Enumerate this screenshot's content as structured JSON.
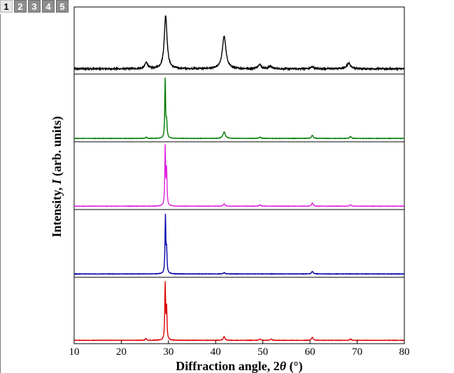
{
  "page_tabs": [
    {
      "label": "1",
      "active": true
    },
    {
      "label": "2",
      "active": false
    },
    {
      "label": "3",
      "active": false
    },
    {
      "label": "4",
      "active": false
    },
    {
      "label": "5",
      "active": false
    }
  ],
  "chart_data": {
    "type": "line",
    "xlabel_prefix": "Diffraction angle, 2",
    "xlabel_theta": "θ",
    "xlabel_suffix": " (°)",
    "ylabel_prefix": "Intensity, ",
    "ylabel_var": "I",
    "ylabel_suffix": " (arb. units)",
    "xlim": [
      10,
      80
    ],
    "xticks": [
      10,
      20,
      30,
      40,
      50,
      60,
      70,
      80
    ],
    "panels": [
      {
        "color": "#000000",
        "baseline": 0.05,
        "noise": 0.012,
        "peaks": [
          {
            "x": 25.3,
            "h": 0.1,
            "w": 0.35
          },
          {
            "x": 29.4,
            "h": 0.85,
            "w": 0.35
          },
          {
            "x": 41.8,
            "h": 0.52,
            "w": 0.45
          },
          {
            "x": 49.3,
            "h": 0.07,
            "w": 0.4
          },
          {
            "x": 51.6,
            "h": 0.04,
            "w": 0.4
          },
          {
            "x": 60.5,
            "h": 0.03,
            "w": 0.4
          },
          {
            "x": 68.2,
            "h": 0.09,
            "w": 0.5
          }
        ]
      },
      {
        "color": "#007a00",
        "baseline": 0.02,
        "noise": 0.003,
        "peaks": [
          {
            "x": 25.3,
            "h": 0.02,
            "w": 0.15
          },
          {
            "x": 29.3,
            "h": 0.92,
            "w": 0.1
          },
          {
            "x": 29.6,
            "h": 0.25,
            "w": 0.12
          },
          {
            "x": 41.8,
            "h": 0.1,
            "w": 0.3
          },
          {
            "x": 49.4,
            "h": 0.02,
            "w": 0.2
          },
          {
            "x": 60.5,
            "h": 0.05,
            "w": 0.2
          },
          {
            "x": 68.6,
            "h": 0.03,
            "w": 0.2
          }
        ]
      },
      {
        "color": "#dd22dd",
        "baseline": 0.02,
        "noise": 0.003,
        "peaks": [
          {
            "x": 29.3,
            "h": 0.92,
            "w": 0.1
          },
          {
            "x": 29.6,
            "h": 0.55,
            "w": 0.1
          },
          {
            "x": 41.8,
            "h": 0.04,
            "w": 0.2
          },
          {
            "x": 49.4,
            "h": 0.02,
            "w": 0.2
          },
          {
            "x": 60.5,
            "h": 0.05,
            "w": 0.2
          },
          {
            "x": 68.6,
            "h": 0.02,
            "w": 0.2
          }
        ]
      },
      {
        "color": "#0000aa",
        "baseline": 0.02,
        "noise": 0.003,
        "peaks": [
          {
            "x": 29.35,
            "h": 0.9,
            "w": 0.1
          },
          {
            "x": 29.6,
            "h": 0.35,
            "w": 0.1
          },
          {
            "x": 41.8,
            "h": 0.02,
            "w": 0.2
          },
          {
            "x": 60.5,
            "h": 0.04,
            "w": 0.2
          }
        ]
      },
      {
        "color": "#dd0000",
        "baseline": 0.02,
        "noise": 0.003,
        "peaks": [
          {
            "x": 25.2,
            "h": 0.03,
            "w": 0.15
          },
          {
            "x": 29.3,
            "h": 0.9,
            "w": 0.1
          },
          {
            "x": 29.6,
            "h": 0.5,
            "w": 0.1
          },
          {
            "x": 41.8,
            "h": 0.06,
            "w": 0.2
          },
          {
            "x": 49.4,
            "h": 0.02,
            "w": 0.2
          },
          {
            "x": 51.8,
            "h": 0.02,
            "w": 0.2
          },
          {
            "x": 60.5,
            "h": 0.05,
            "w": 0.2
          },
          {
            "x": 68.6,
            "h": 0.02,
            "w": 0.2
          }
        ]
      }
    ]
  }
}
